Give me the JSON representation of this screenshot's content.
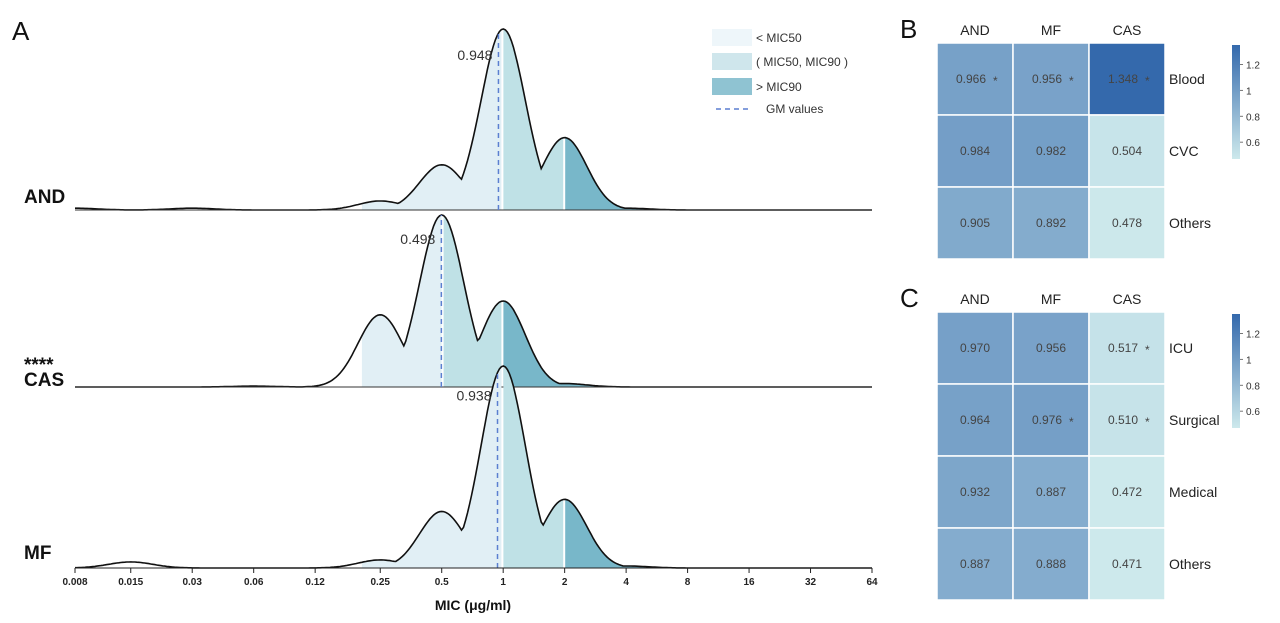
{
  "panel_labels": {
    "a": "A",
    "b": "B",
    "c": "C"
  },
  "legend": {
    "lt_mic50": "< MIC50",
    "between": "( MIC50, MIC90 )",
    "gt_mic90": "> MIC90",
    "gm_values": "GM values"
  },
  "colors": {
    "region_low": "#e1eff5",
    "region_mid": "#bfe1e6",
    "region_high": "#78b7c9",
    "gm_line": "#5b7fd0",
    "heat_low": "#cde9ec",
    "heat_high": "#3469ac"
  },
  "chart_data": [
    {
      "type": "area",
      "panel": "A",
      "xlabel": "MIC (μg/ml)",
      "x_ticks": [
        "0.008",
        "0.015",
        "0.03",
        "0.06",
        "0.12",
        "0.25",
        "0.5",
        "1",
        "2",
        "4",
        "8",
        "16",
        "32",
        "64"
      ],
      "x_scale": "log2",
      "xlim": [
        0.008,
        64
      ],
      "series": [
        {
          "name": "AND",
          "significance": "",
          "gm_value": 0.948,
          "gm_label": "0.948",
          "mic50": 1,
          "mic90": 2,
          "density_peaks": [
            {
              "x": 0.008,
              "h": 0.01
            },
            {
              "x": 0.03,
              "h": 0.01
            },
            {
              "x": 0.25,
              "h": 0.05
            },
            {
              "x": 0.5,
              "h": 0.25
            },
            {
              "x": 1,
              "h": 1.0
            },
            {
              "x": 2,
              "h": 0.4
            },
            {
              "x": 4,
              "h": 0.01
            }
          ]
        },
        {
          "name": "CAS",
          "significance": "****",
          "gm_value": 0.498,
          "gm_label": "0.498",
          "mic50": 0.5,
          "mic90": 1,
          "density_peaks": [
            {
              "x": 0.06,
              "h": 0.005
            },
            {
              "x": 0.25,
              "h": 0.42
            },
            {
              "x": 0.5,
              "h": 1.0
            },
            {
              "x": 1,
              "h": 0.5
            },
            {
              "x": 2,
              "h": 0.02
            }
          ]
        },
        {
          "name": "MF",
          "significance": "",
          "gm_value": 0.938,
          "gm_label": "0.938",
          "mic50": 1,
          "mic90": 2,
          "density_peaks": [
            {
              "x": 0.015,
              "h": 0.03
            },
            {
              "x": 0.25,
              "h": 0.04
            },
            {
              "x": 0.5,
              "h": 0.28
            },
            {
              "x": 1,
              "h": 1.0
            },
            {
              "x": 2,
              "h": 0.34
            },
            {
              "x": 4,
              "h": 0.01
            }
          ]
        }
      ]
    },
    {
      "type": "heatmap",
      "panel": "B",
      "columns": [
        "AND",
        "MF",
        "CAS"
      ],
      "rows": [
        "Blood",
        "CVC",
        "Others"
      ],
      "values": [
        [
          0.966,
          0.956,
          1.348
        ],
        [
          0.984,
          0.982,
          0.504
        ],
        [
          0.905,
          0.892,
          0.478
        ]
      ],
      "labels": [
        [
          "0.966",
          "0.956",
          "1.348"
        ],
        [
          "0.984",
          "0.982",
          "0.504"
        ],
        [
          "0.905",
          "0.892",
          "0.478"
        ]
      ],
      "marks": [
        [
          "*",
          "*",
          "*"
        ],
        [
          "",
          "",
          ""
        ],
        [
          "",
          "",
          ""
        ]
      ],
      "colorbar_ticks": [
        "1.2",
        "1",
        "0.8",
        "0.6"
      ],
      "range": [
        0.47,
        1.35
      ]
    },
    {
      "type": "heatmap",
      "panel": "C",
      "columns": [
        "AND",
        "MF",
        "CAS"
      ],
      "rows": [
        "ICU",
        "Surgical",
        "Medical",
        "Others"
      ],
      "values": [
        [
          0.97,
          0.956,
          0.517
        ],
        [
          0.964,
          0.976,
          0.51
        ],
        [
          0.932,
          0.887,
          0.472
        ],
        [
          0.887,
          0.888,
          0.471
        ]
      ],
      "labels": [
        [
          "0.970",
          "0.956",
          "0.517"
        ],
        [
          "0.964",
          "0.976",
          "0.510"
        ],
        [
          "0.932",
          "0.887",
          "0.472"
        ],
        [
          "0.887",
          "0.888",
          "0.471"
        ]
      ],
      "marks": [
        [
          "",
          "",
          "*"
        ],
        [
          "",
          "*",
          "*"
        ],
        [
          "",
          "",
          ""
        ],
        [
          "",
          "",
          ""
        ]
      ],
      "colorbar_ticks": [
        "1.2",
        "1",
        "0.8",
        "0.6"
      ],
      "range": [
        0.47,
        1.35
      ]
    }
  ]
}
